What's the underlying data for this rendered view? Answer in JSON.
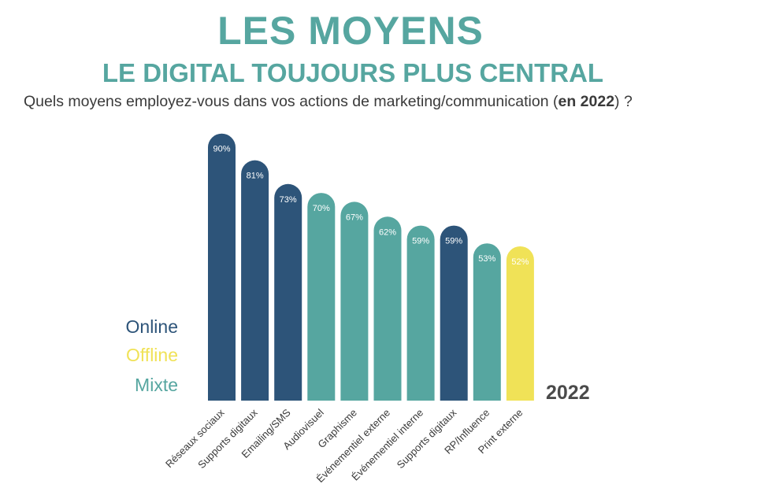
{
  "header": {
    "title": "LES MOYENS",
    "subtitle": "LE DIGITAL TOUJOURS PLUS CENTRAL",
    "question_before": "Quels moyens employez-vous dans vos actions de marketing/communication (",
    "question_bold": "en 2022",
    "question_after": ") ?"
  },
  "legend": {
    "online": {
      "label": "Online",
      "color": "#2d5479"
    },
    "offline": {
      "label": "Offline",
      "color": "#f0e257"
    },
    "mixte": {
      "label": "Mixte",
      "color": "#56a6a0"
    }
  },
  "year_label": "2022",
  "chart_data": {
    "type": "bar",
    "categories": [
      "Réseaux sociaux",
      "Supports digitaux",
      "Emailing/SMS",
      "Audiovisuel",
      "Graphisme",
      "Événementiel externe",
      "Événementiel interne",
      "Supports digitaux",
      "RP/Influence",
      "Print externe"
    ],
    "values": [
      90,
      81,
      73,
      70,
      67,
      62,
      59,
      59,
      53,
      52
    ],
    "value_labels": [
      "90%",
      "81%",
      "73%",
      "70%",
      "67%",
      "62%",
      "59%",
      "59%",
      "53%",
      "52%"
    ],
    "bar_types": [
      "online",
      "online",
      "online",
      "mixte",
      "mixte",
      "mixte",
      "mixte",
      "online",
      "mixte",
      "offline"
    ],
    "ylim": [
      0,
      100
    ],
    "grid": false,
    "legend_position": "left"
  }
}
